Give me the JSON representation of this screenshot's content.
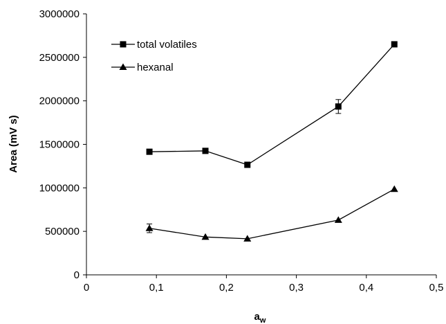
{
  "chart_data": {
    "type": "line",
    "xlabel": {
      "main": "a",
      "subscript": "w"
    },
    "ylabel": "Area  (mV s)",
    "xlim": [
      0,
      0.5
    ],
    "ylim": [
      0,
      3000000
    ],
    "x_ticks": [
      "0",
      "0,1",
      "0,2",
      "0,3",
      "0,4",
      "0,5"
    ],
    "y_ticks": [
      "0",
      "500000",
      "1000000",
      "1500000",
      "2000000",
      "2500000",
      "3000000"
    ],
    "grid": false,
    "legend_position": "top-left",
    "series": [
      {
        "name": "total volatiles",
        "marker": "square",
        "x": [
          0.09,
          0.17,
          0.23,
          0.36,
          0.44
        ],
        "y": [
          1415000,
          1425000,
          1265000,
          1935000,
          2650000
        ],
        "error": [
          0,
          0,
          0,
          80000,
          0
        ]
      },
      {
        "name": "hexanal",
        "marker": "triangle",
        "x": [
          0.09,
          0.17,
          0.23,
          0.36,
          0.44
        ],
        "y": [
          535000,
          435000,
          415000,
          630000,
          985000
        ],
        "error": [
          50000,
          0,
          0,
          0,
          0
        ]
      }
    ]
  }
}
